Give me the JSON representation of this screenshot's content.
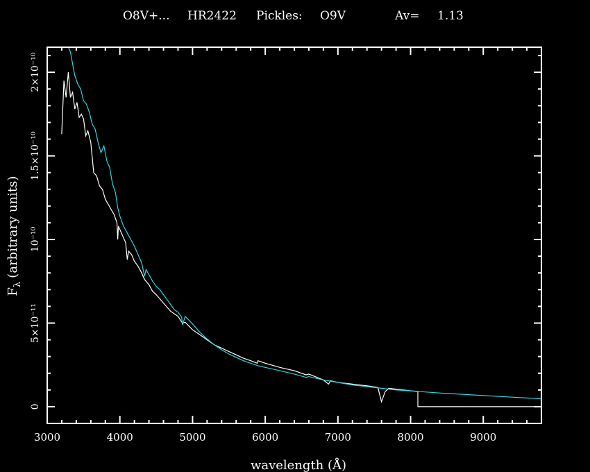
{
  "chart_data": {
    "type": "line",
    "title_parts": [
      "O8V+...",
      "HR2422",
      "Pickles:",
      "O9V",
      "Av=",
      "1.13"
    ],
    "xlabel": "wavelength (Å)",
    "ylabel": "F",
    "ylabel_sub": "λ",
    "ylabel_rest": "(arbitrary units)",
    "xlim": [
      3000,
      9800
    ],
    "ylim": [
      -1e-11,
      2.15e-10
    ],
    "xticks": [
      {
        "value": 3000,
        "label": "3000"
      },
      {
        "value": 4000,
        "label": "4000"
      },
      {
        "value": 5000,
        "label": "5000"
      },
      {
        "value": 6000,
        "label": "6000"
      },
      {
        "value": 7000,
        "label": "7000"
      },
      {
        "value": 8000,
        "label": "8000"
      },
      {
        "value": 9000,
        "label": "9000"
      }
    ],
    "yticks": [
      {
        "value": 0,
        "label": "0"
      },
      {
        "value": 5e-11,
        "label": "5×10⁻¹¹"
      },
      {
        "value": 1e-10,
        "label": "10⁻¹⁰"
      },
      {
        "value": 1.5e-10,
        "label": "1.5×10⁻¹⁰"
      },
      {
        "value": 2e-10,
        "label": "2×10⁻¹⁰"
      }
    ],
    "grid": false,
    "series": [
      {
        "color": "#ffffff",
        "x": [
          3200,
          3230,
          3260,
          3290,
          3320,
          3350,
          3380,
          3410,
          3440,
          3470,
          3500,
          3530,
          3560,
          3600,
          3640,
          3680,
          3720,
          3760,
          3800,
          3840,
          3880,
          3920,
          3960,
          3970,
          3980,
          4000,
          4040,
          4080,
          4101,
          4120,
          4160,
          4200,
          4250,
          4300,
          4340,
          4400,
          4450,
          4500,
          4600,
          4700,
          4800,
          4861,
          4900,
          5000,
          5100,
          5200,
          5300,
          5400,
          5500,
          5600,
          5700,
          5800,
          5890,
          5900,
          6000,
          6200,
          6400,
          6563,
          6600,
          6800,
          6870,
          6900,
          7000,
          7200,
          7400,
          7550,
          7600,
          7650,
          7700,
          7800,
          8000,
          8100
        ],
        "y": [
          1.63e-10,
          1.95e-10,
          1.85e-10,
          2e-10,
          1.85e-10,
          1.88e-10,
          1.78e-10,
          1.82e-10,
          1.73e-10,
          1.75e-10,
          1.72e-10,
          1.62e-10,
          1.65e-10,
          1.58e-10,
          1.4e-10,
          1.38e-10,
          1.32e-10,
          1.3e-10,
          1.24e-10,
          1.21e-10,
          1.18e-10,
          1.15e-10,
          1.1e-10,
          1e-10,
          1.08e-10,
          1.06e-10,
          1.02e-10,
          9.8e-11,
          8.8e-11,
          9.3e-11,
          9.1e-11,
          8.7e-11,
          8.4e-11,
          8e-11,
          7.6e-11,
          7.3e-11,
          6.9e-11,
          6.7e-11,
          6.2e-11,
          5.7e-11,
          5.4e-11,
          5e-11,
          5.05e-11,
          4.6e-11,
          4.3e-11,
          4e-11,
          3.7e-11,
          3.5e-11,
          3.3e-11,
          3.1e-11,
          2.9e-11,
          2.75e-11,
          2.6e-11,
          2.75e-11,
          2.6e-11,
          2.35e-11,
          2.15e-11,
          1.9e-11,
          1.95e-11,
          1.6e-11,
          1.35e-11,
          1.55e-11,
          1.45e-11,
          1.35e-11,
          1.25e-11,
          1.15e-11,
          3e-12,
          9e-12,
          1.1e-11,
          1.05e-11,
          9.5e-12,
          9e-12
        ]
      },
      {
        "color": "#29d8e3",
        "x": [
          3290,
          3320,
          3350,
          3380,
          3420,
          3460,
          3500,
          3540,
          3580,
          3620,
          3660,
          3700,
          3740,
          3780,
          3820,
          3860,
          3900,
          3940,
          3970,
          4000,
          4050,
          4100,
          4150,
          4200,
          4250,
          4300,
          4340,
          4360,
          4400,
          4450,
          4500,
          4550,
          4600,
          4650,
          4700,
          4750,
          4800,
          4850,
          4861,
          4900,
          5000,
          5100,
          5200,
          5300,
          5400,
          5500,
          5600,
          5700,
          5800,
          5900,
          6000,
          6200,
          6400,
          6563,
          6600,
          6800,
          7000,
          7200,
          7400,
          7600,
          7800,
          8000,
          8200,
          8400,
          8600,
          8800,
          9000,
          9200,
          9400,
          9600,
          9800
        ],
        "y": [
          2.15e-10,
          2.12e-10,
          2.05e-10,
          1.98e-10,
          1.93e-10,
          1.9e-10,
          1.83e-10,
          1.81e-10,
          1.76e-10,
          1.69e-10,
          1.66e-10,
          1.58e-10,
          1.52e-10,
          1.56e-10,
          1.47e-10,
          1.43e-10,
          1.33e-10,
          1.28e-10,
          1.19e-10,
          1.14e-10,
          1.08e-10,
          1.04e-10,
          1e-10,
          9.6e-11,
          9.1e-11,
          8.6e-11,
          7.8e-11,
          8.2e-11,
          7.9e-11,
          7.5e-11,
          7.2e-11,
          7e-11,
          6.7e-11,
          6.4e-11,
          6.1e-11,
          5.8e-11,
          5.65e-11,
          5.35e-11,
          4.9e-11,
          5.4e-11,
          4.95e-11,
          4.45e-11,
          4.05e-11,
          3.7e-11,
          3.4e-11,
          3.15e-11,
          2.95e-11,
          2.75e-11,
          2.6e-11,
          2.45e-11,
          2.35e-11,
          2.15e-11,
          1.95e-11,
          1.75e-11,
          1.8e-11,
          1.6e-11,
          1.45e-11,
          1.3e-11,
          1.2e-11,
          1.1e-11,
          1e-11,
          9.5e-12,
          8.8e-12,
          8.2e-12,
          7.7e-12,
          7.2e-12,
          6.7e-12,
          6.2e-12,
          5.7e-12,
          5.2e-12,
          4.7e-12
        ]
      }
    ],
    "step_segment": {
      "color": "#ffffff",
      "x": [
        8100,
        8100,
        9800
      ],
      "y": [
        9e-12,
        0,
        0
      ]
    }
  }
}
